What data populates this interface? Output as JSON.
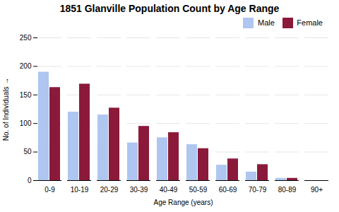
{
  "chart_data": {
    "type": "bar",
    "title": "1851 Glanville Population Count by Age Range",
    "xlabel": "Age Range (years)",
    "ylabel": "No. of Individuals",
    "categories": [
      "0-9",
      "10-19",
      "20-29",
      "30-39",
      "40-49",
      "50-59",
      "60-69",
      "70-79",
      "80-89",
      "90+"
    ],
    "series": [
      {
        "name": "Male",
        "color": "#aec6f0",
        "values": [
          190,
          120,
          115,
          66,
          75,
          63,
          27,
          15,
          4,
          0
        ]
      },
      {
        "name": "Female",
        "color": "#8b1a3a",
        "values": [
          163,
          169,
          127,
          95,
          84,
          56,
          38,
          28,
          4,
          0
        ]
      }
    ],
    "ylim": [
      0,
      250
    ],
    "yticks": [
      0,
      50,
      100,
      150,
      200,
      250
    ],
    "grid": true,
    "legend": "upper right"
  }
}
